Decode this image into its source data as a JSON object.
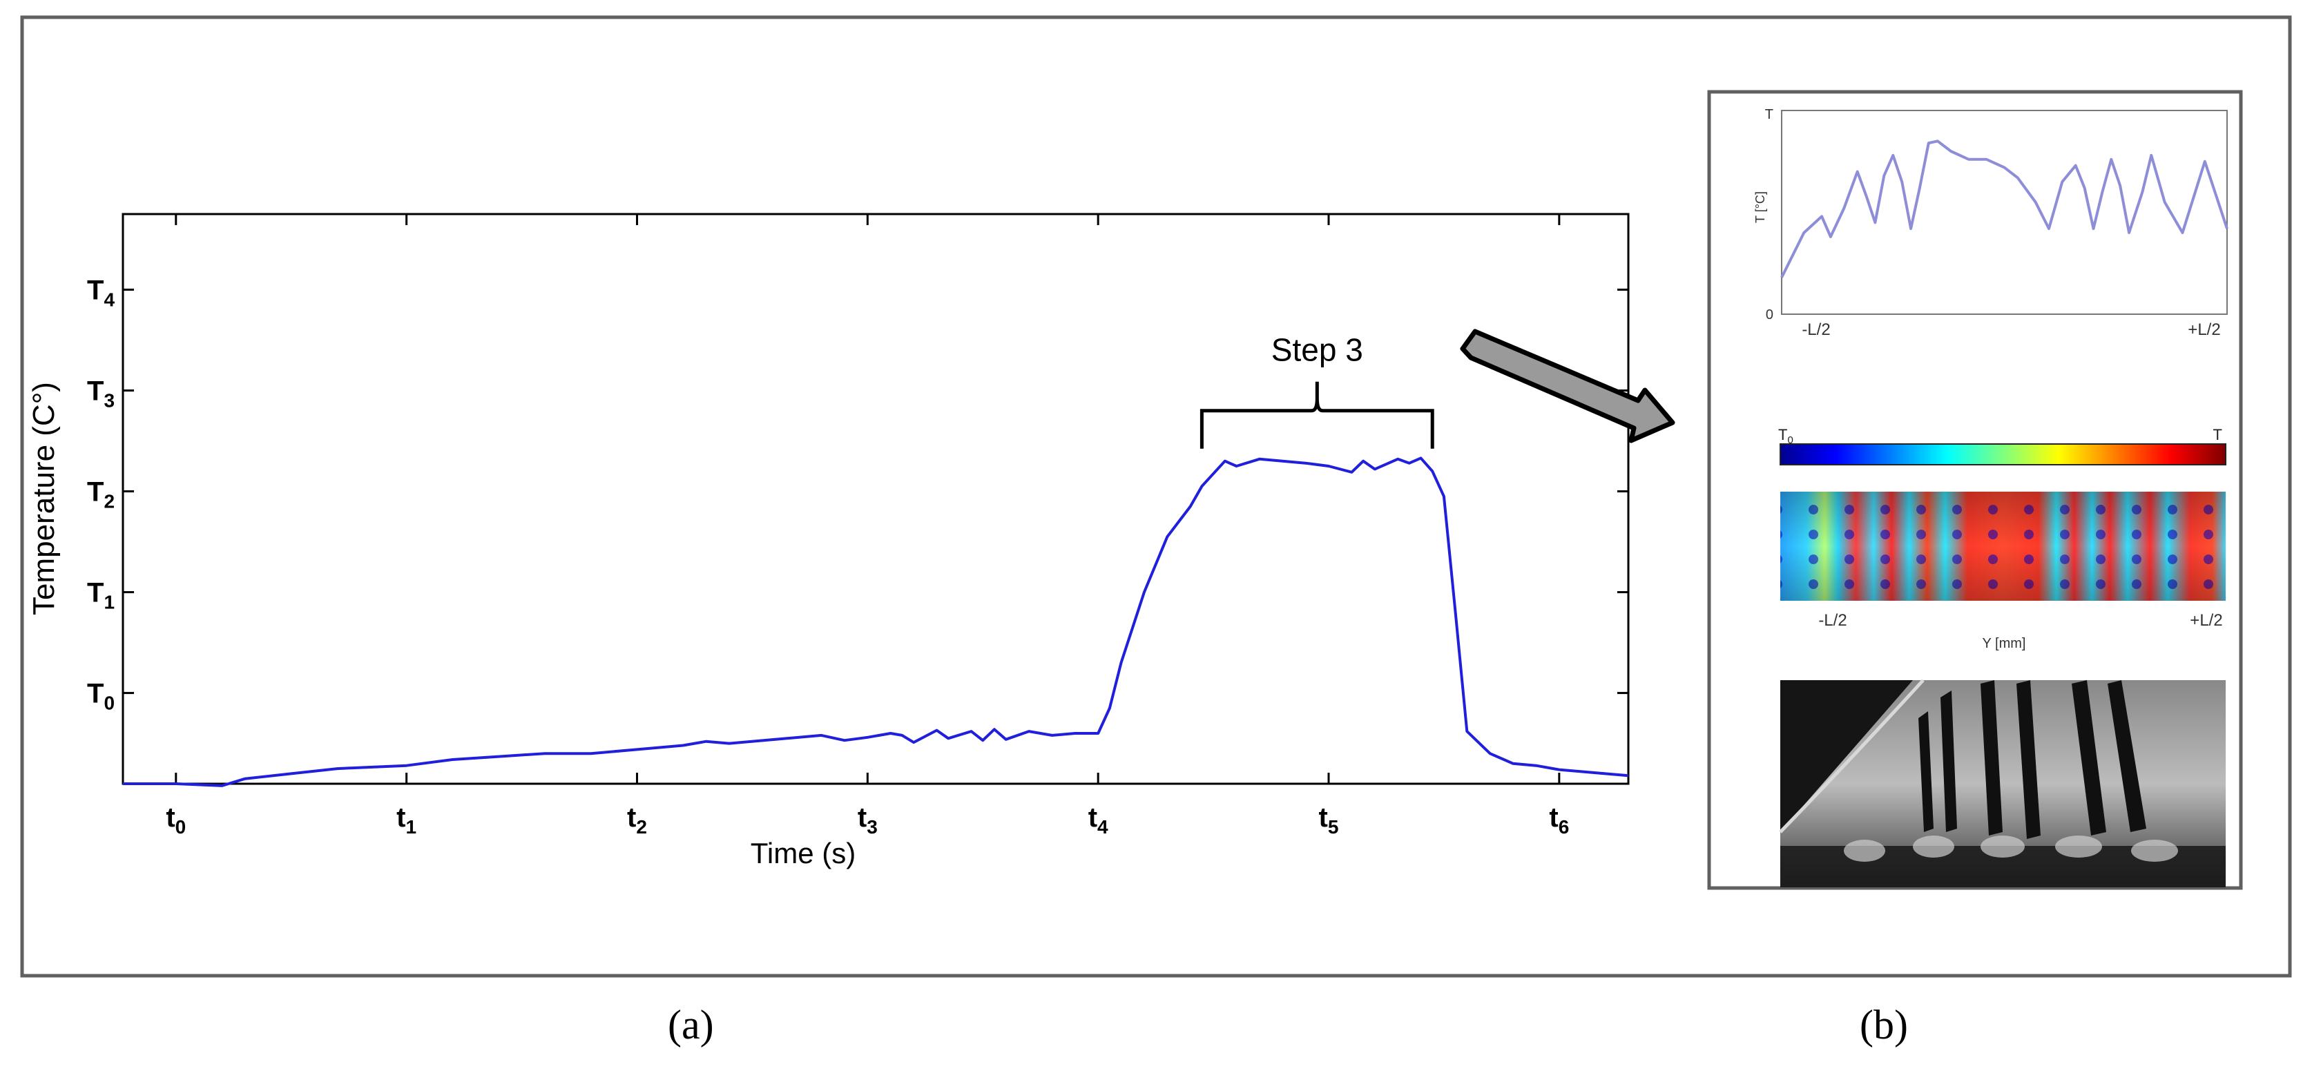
{
  "chart_data": [
    {
      "type": "line",
      "panel": "(a)",
      "title": "",
      "xlabel": "Time (s)",
      "ylabel": "Temperature (C°)",
      "xlim": [
        -0.23,
        6.3
      ],
      "ylim": [
        -0.9,
        4.75
      ],
      "x_ticks": [
        {
          "value": 0,
          "base": "t",
          "sub": "0"
        },
        {
          "value": 1,
          "base": "t",
          "sub": "1"
        },
        {
          "value": 2,
          "base": "t",
          "sub": "2"
        },
        {
          "value": 3,
          "base": "t",
          "sub": "3"
        },
        {
          "value": 4,
          "base": "t",
          "sub": "4"
        },
        {
          "value": 5,
          "base": "t",
          "sub": "5"
        },
        {
          "value": 6,
          "base": "t",
          "sub": "6"
        }
      ],
      "y_ticks": [
        {
          "value": 0,
          "base": "T",
          "sub": "0"
        },
        {
          "value": 1,
          "base": "T",
          "sub": "1"
        },
        {
          "value": 2,
          "base": "T",
          "sub": "2"
        },
        {
          "value": 3,
          "base": "T",
          "sub": "3"
        },
        {
          "value": 4,
          "base": "T",
          "sub": "4"
        }
      ],
      "series": [
        {
          "name": "temperature",
          "color": "#1f1fdc",
          "x": [
            -0.23,
            0,
            0.2,
            0.3,
            0.5,
            0.7,
            0.8,
            1.0,
            1.2,
            1.4,
            1.6,
            1.8,
            2.0,
            2.2,
            2.3,
            2.4,
            2.6,
            2.8,
            2.9,
            3.0,
            3.1,
            3.15,
            3.2,
            3.3,
            3.35,
            3.45,
            3.5,
            3.55,
            3.6,
            3.7,
            3.75,
            3.8,
            3.9,
            4.0,
            4.05,
            4.1,
            4.2,
            4.3,
            4.35,
            4.4,
            4.45,
            4.55,
            4.6,
            4.7,
            4.8,
            4.9,
            5.0,
            5.1,
            5.15,
            5.2,
            5.3,
            5.35,
            5.4,
            5.45,
            5.5,
            5.55,
            5.6,
            5.7,
            5.75,
            5.8,
            5.9,
            6.0,
            6.1,
            6.3
          ],
          "y": [
            -0.9,
            -0.9,
            -0.92,
            -0.85,
            -0.8,
            -0.75,
            -0.74,
            -0.72,
            -0.66,
            -0.63,
            -0.6,
            -0.6,
            -0.56,
            -0.52,
            -0.48,
            -0.5,
            -0.46,
            -0.42,
            -0.47,
            -0.44,
            -0.4,
            -0.42,
            -0.49,
            -0.37,
            -0.45,
            -0.38,
            -0.47,
            -0.36,
            -0.46,
            -0.38,
            -0.4,
            -0.42,
            -0.4,
            -0.4,
            -0.15,
            0.3,
            1.0,
            1.55,
            1.7,
            1.85,
            2.05,
            2.3,
            2.25,
            2.32,
            2.3,
            2.28,
            2.25,
            2.19,
            2.3,
            2.22,
            2.32,
            2.28,
            2.33,
            2.2,
            1.95,
            0.8,
            -0.38,
            -0.6,
            -0.65,
            -0.7,
            -0.72,
            -0.76,
            -0.78,
            -0.82
          ]
        }
      ],
      "annotations": [
        {
          "text": "Step 3",
          "x_start": 4.45,
          "x_end": 5.45,
          "y": 2.8
        }
      ],
      "grid": false
    },
    {
      "type": "line",
      "panel": "(b)",
      "title": "",
      "xlabel": "",
      "ylabel": "T [°C]",
      "y_top_tick": "T",
      "y_bottom_tick": "0",
      "x_tick_labels": [
        "-L/2",
        "+L/2"
      ],
      "series": [
        {
          "name": "profile",
          "color": "#8e8ed8",
          "x": [
            0,
            0.05,
            0.09,
            0.11,
            0.14,
            0.17,
            0.19,
            0.21,
            0.23,
            0.25,
            0.27,
            0.29,
            0.31,
            0.33,
            0.35,
            0.38,
            0.42,
            0.46,
            0.5,
            0.53,
            0.57,
            0.6,
            0.63,
            0.66,
            0.68,
            0.7,
            0.72,
            0.74,
            0.76,
            0.78,
            0.81,
            0.83,
            0.86,
            0.9,
            0.95,
            1.0
          ],
          "y": [
            0.18,
            0.4,
            0.48,
            0.38,
            0.52,
            0.7,
            0.58,
            0.45,
            0.68,
            0.78,
            0.65,
            0.42,
            0.62,
            0.84,
            0.85,
            0.8,
            0.76,
            0.76,
            0.72,
            0.67,
            0.55,
            0.42,
            0.65,
            0.73,
            0.62,
            0.42,
            0.6,
            0.76,
            0.63,
            0.4,
            0.6,
            0.78,
            0.55,
            0.4,
            0.75,
            0.42
          ]
        }
      ]
    }
  ],
  "colorbar": {
    "min_label": "T0",
    "max_label": "T"
  },
  "heatmap": {
    "x_tick_labels": [
      "-L/2",
      "+L/2"
    ],
    "xlabel": "Y [mm]"
  },
  "captions": {
    "left": "(a)",
    "right": "(b)"
  }
}
